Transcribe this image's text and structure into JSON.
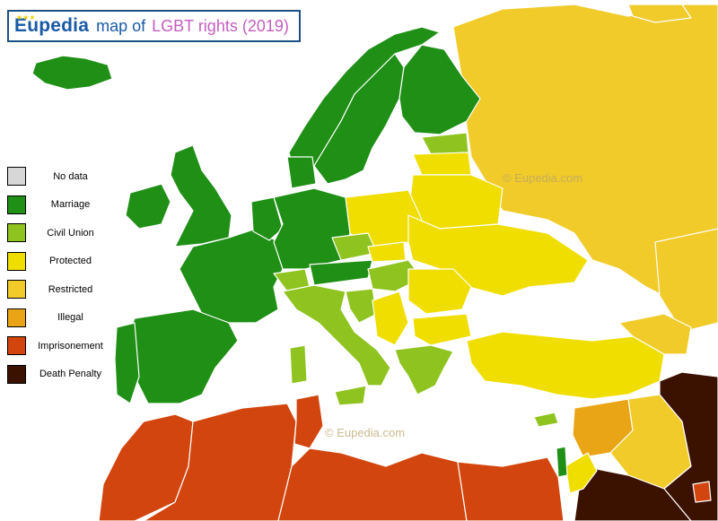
{
  "header": {
    "brand": "Eupedia",
    "map_of": "map of",
    "theme": "LGBT rights (2019)"
  },
  "legend": [
    {
      "label": "No data",
      "color": "#d7d7d7"
    },
    {
      "label": "Marriage",
      "color": "#1f8f16"
    },
    {
      "label": "Civil Union",
      "color": "#8fc31f"
    },
    {
      "label": "Protected",
      "color": "#f0de00"
    },
    {
      "label": "Restricted",
      "color": "#f0cb2a"
    },
    {
      "label": "Illegal",
      "color": "#e9a516"
    },
    {
      "label": "Imprisonement",
      "color": "#d2450e"
    },
    {
      "label": "Death Penalty",
      "color": "#3b1100"
    }
  ],
  "watermarks": [
    "© Eupedia.com",
    "© Eupedia.com"
  ],
  "colors": {
    "sea": "#ffffff",
    "brand": "#1a5aa5",
    "theme": "#c45dc0"
  }
}
